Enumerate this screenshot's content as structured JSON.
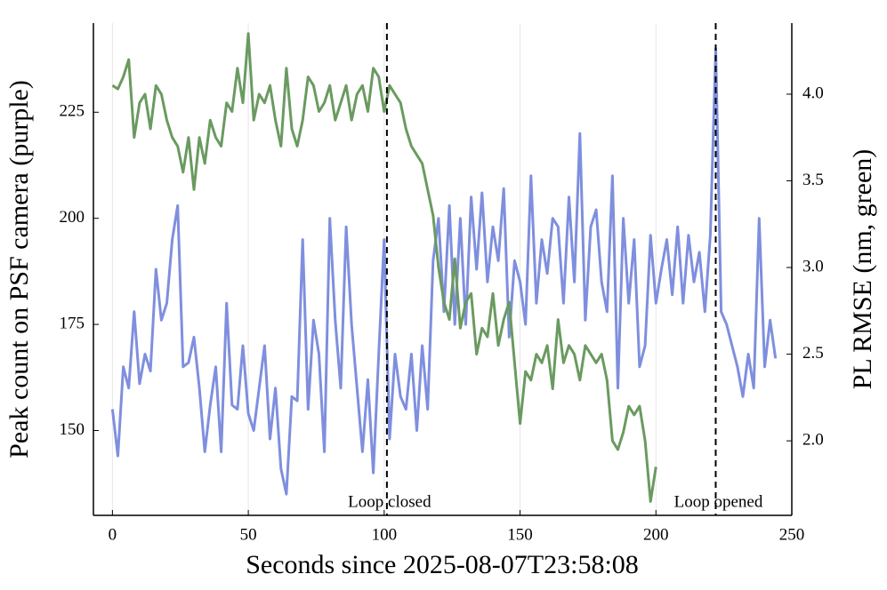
{
  "chart_data": {
    "type": "line",
    "xlabel": "Seconds since 2025-08-07T23:58:08",
    "ylabel": "Peak count on PSF camera (purple)",
    "y2label": "PL RMSE (nm, green)",
    "xlim": [
      -7,
      250
    ],
    "xticks": [
      0,
      50,
      100,
      150,
      200,
      250
    ],
    "ylim": [
      130,
      246
    ],
    "yticks": [
      150,
      175,
      200,
      225
    ],
    "y2lim": [
      1.57,
      4.41
    ],
    "y2ticks": [
      {
        "value": 2,
        "label": "2.0"
      },
      2.5,
      {
        "value": 3,
        "label": "3.0"
      },
      3.5,
      {
        "value": 4,
        "label": "4.0"
      }
    ],
    "grid": true,
    "annotations": [
      {
        "x": 101,
        "text": "Loop closed"
      },
      {
        "x": 222,
        "text": "Loop opened"
      }
    ],
    "series": [
      {
        "color": "#7f8fde",
        "axis": "y",
        "x": [
          0,
          2,
          4,
          6,
          8,
          10,
          12,
          14,
          16,
          18,
          20,
          22,
          24,
          26,
          28,
          30,
          32,
          34,
          36,
          38,
          40,
          42,
          44,
          46,
          48,
          50,
          52,
          54,
          56,
          58,
          60,
          62,
          64,
          66,
          68,
          70,
          72,
          74,
          76,
          78,
          80,
          82,
          84,
          86,
          88,
          90,
          92,
          94,
          96,
          98,
          100,
          102,
          104,
          106,
          108,
          110,
          112,
          114,
          116,
          118,
          120,
          122,
          124,
          126,
          128,
          130,
          132,
          134,
          136,
          138,
          140,
          142,
          144,
          146,
          148,
          150,
          152,
          154,
          156,
          158,
          160,
          162,
          164,
          166,
          168,
          170,
          172,
          174,
          176,
          178,
          180,
          182,
          184,
          186,
          188,
          190,
          192,
          194,
          196,
          198,
          200,
          202,
          204,
          206,
          208,
          210,
          212,
          214,
          216,
          218,
          220,
          222,
          224,
          226,
          228,
          230,
          232,
          234,
          236,
          238,
          240,
          242,
          244
        ],
        "values": [
          155,
          144,
          165,
          160,
          178,
          161,
          168,
          164,
          188,
          176,
          180,
          195,
          203,
          165,
          166,
          172,
          160,
          145,
          156,
          165,
          145,
          180,
          156,
          155,
          170,
          154,
          150,
          160,
          170,
          148,
          160,
          141,
          135,
          158,
          157,
          195,
          155,
          176,
          168,
          145,
          200,
          176,
          160,
          198,
          175,
          160,
          145,
          162,
          140,
          168,
          195,
          148,
          168,
          158,
          155,
          168,
          150,
          170,
          155,
          190,
          200,
          178,
          203,
          175,
          200,
          175,
          205,
          188,
          206,
          185,
          198,
          190,
          207,
          172,
          190,
          185,
          175,
          210,
          180,
          195,
          187,
          200,
          198,
          180,
          205,
          185,
          220,
          176,
          198,
          202,
          185,
          178,
          210,
          160,
          200,
          180,
          195,
          165,
          170,
          196,
          180,
          188,
          195,
          182,
          198,
          180,
          196,
          185,
          192,
          178,
          196,
          240,
          178,
          175,
          170,
          165,
          158,
          168,
          160,
          200,
          165,
          176,
          167
        ]
      },
      {
        "color": "#6a9a60",
        "axis": "y2",
        "x": [
          0,
          2,
          4,
          6,
          8,
          10,
          12,
          14,
          16,
          18,
          20,
          22,
          24,
          26,
          28,
          30,
          32,
          34,
          36,
          38,
          40,
          42,
          44,
          46,
          48,
          50,
          52,
          54,
          56,
          58,
          60,
          62,
          64,
          66,
          68,
          70,
          72,
          74,
          76,
          78,
          80,
          82,
          84,
          86,
          88,
          90,
          92,
          94,
          96,
          98,
          100,
          102,
          104,
          106,
          108,
          110,
          112,
          114,
          116,
          118,
          120,
          122,
          124,
          126,
          128,
          130,
          132,
          134,
          136,
          138,
          140,
          142,
          144,
          146,
          148,
          150,
          152,
          154,
          156,
          158,
          160,
          162,
          164,
          166,
          168,
          170,
          172,
          174,
          176,
          178,
          180,
          182,
          184,
          186,
          188,
          190,
          192,
          194,
          196,
          198,
          200
        ],
        "values": [
          4.05,
          4.03,
          4.1,
          4.2,
          3.75,
          3.95,
          4.0,
          3.8,
          4.05,
          4.0,
          3.85,
          3.75,
          3.7,
          3.55,
          3.75,
          3.45,
          3.75,
          3.6,
          3.85,
          3.75,
          3.7,
          3.95,
          3.9,
          4.15,
          3.95,
          4.35,
          3.85,
          4.0,
          3.95,
          4.05,
          3.85,
          3.7,
          4.15,
          3.8,
          3.7,
          3.85,
          4.1,
          4.05,
          3.9,
          3.95,
          4.05,
          3.85,
          3.95,
          4.05,
          3.85,
          4.0,
          4.05,
          3.9,
          4.15,
          4.1,
          3.9,
          4.05,
          4.0,
          3.95,
          3.8,
          3.7,
          3.65,
          3.6,
          3.45,
          3.3,
          3.0,
          2.8,
          2.7,
          3.05,
          2.65,
          2.8,
          2.85,
          2.5,
          2.65,
          2.6,
          2.85,
          2.55,
          2.7,
          2.8,
          2.45,
          2.1,
          2.4,
          2.35,
          2.5,
          2.45,
          2.55,
          2.3,
          2.7,
          2.45,
          2.55,
          2.5,
          2.35,
          2.55,
          2.5,
          2.45,
          2.5,
          2.35,
          2.0,
          1.95,
          2.05,
          2.2,
          2.15,
          2.2,
          2.0,
          1.65,
          1.85
        ]
      }
    ]
  }
}
